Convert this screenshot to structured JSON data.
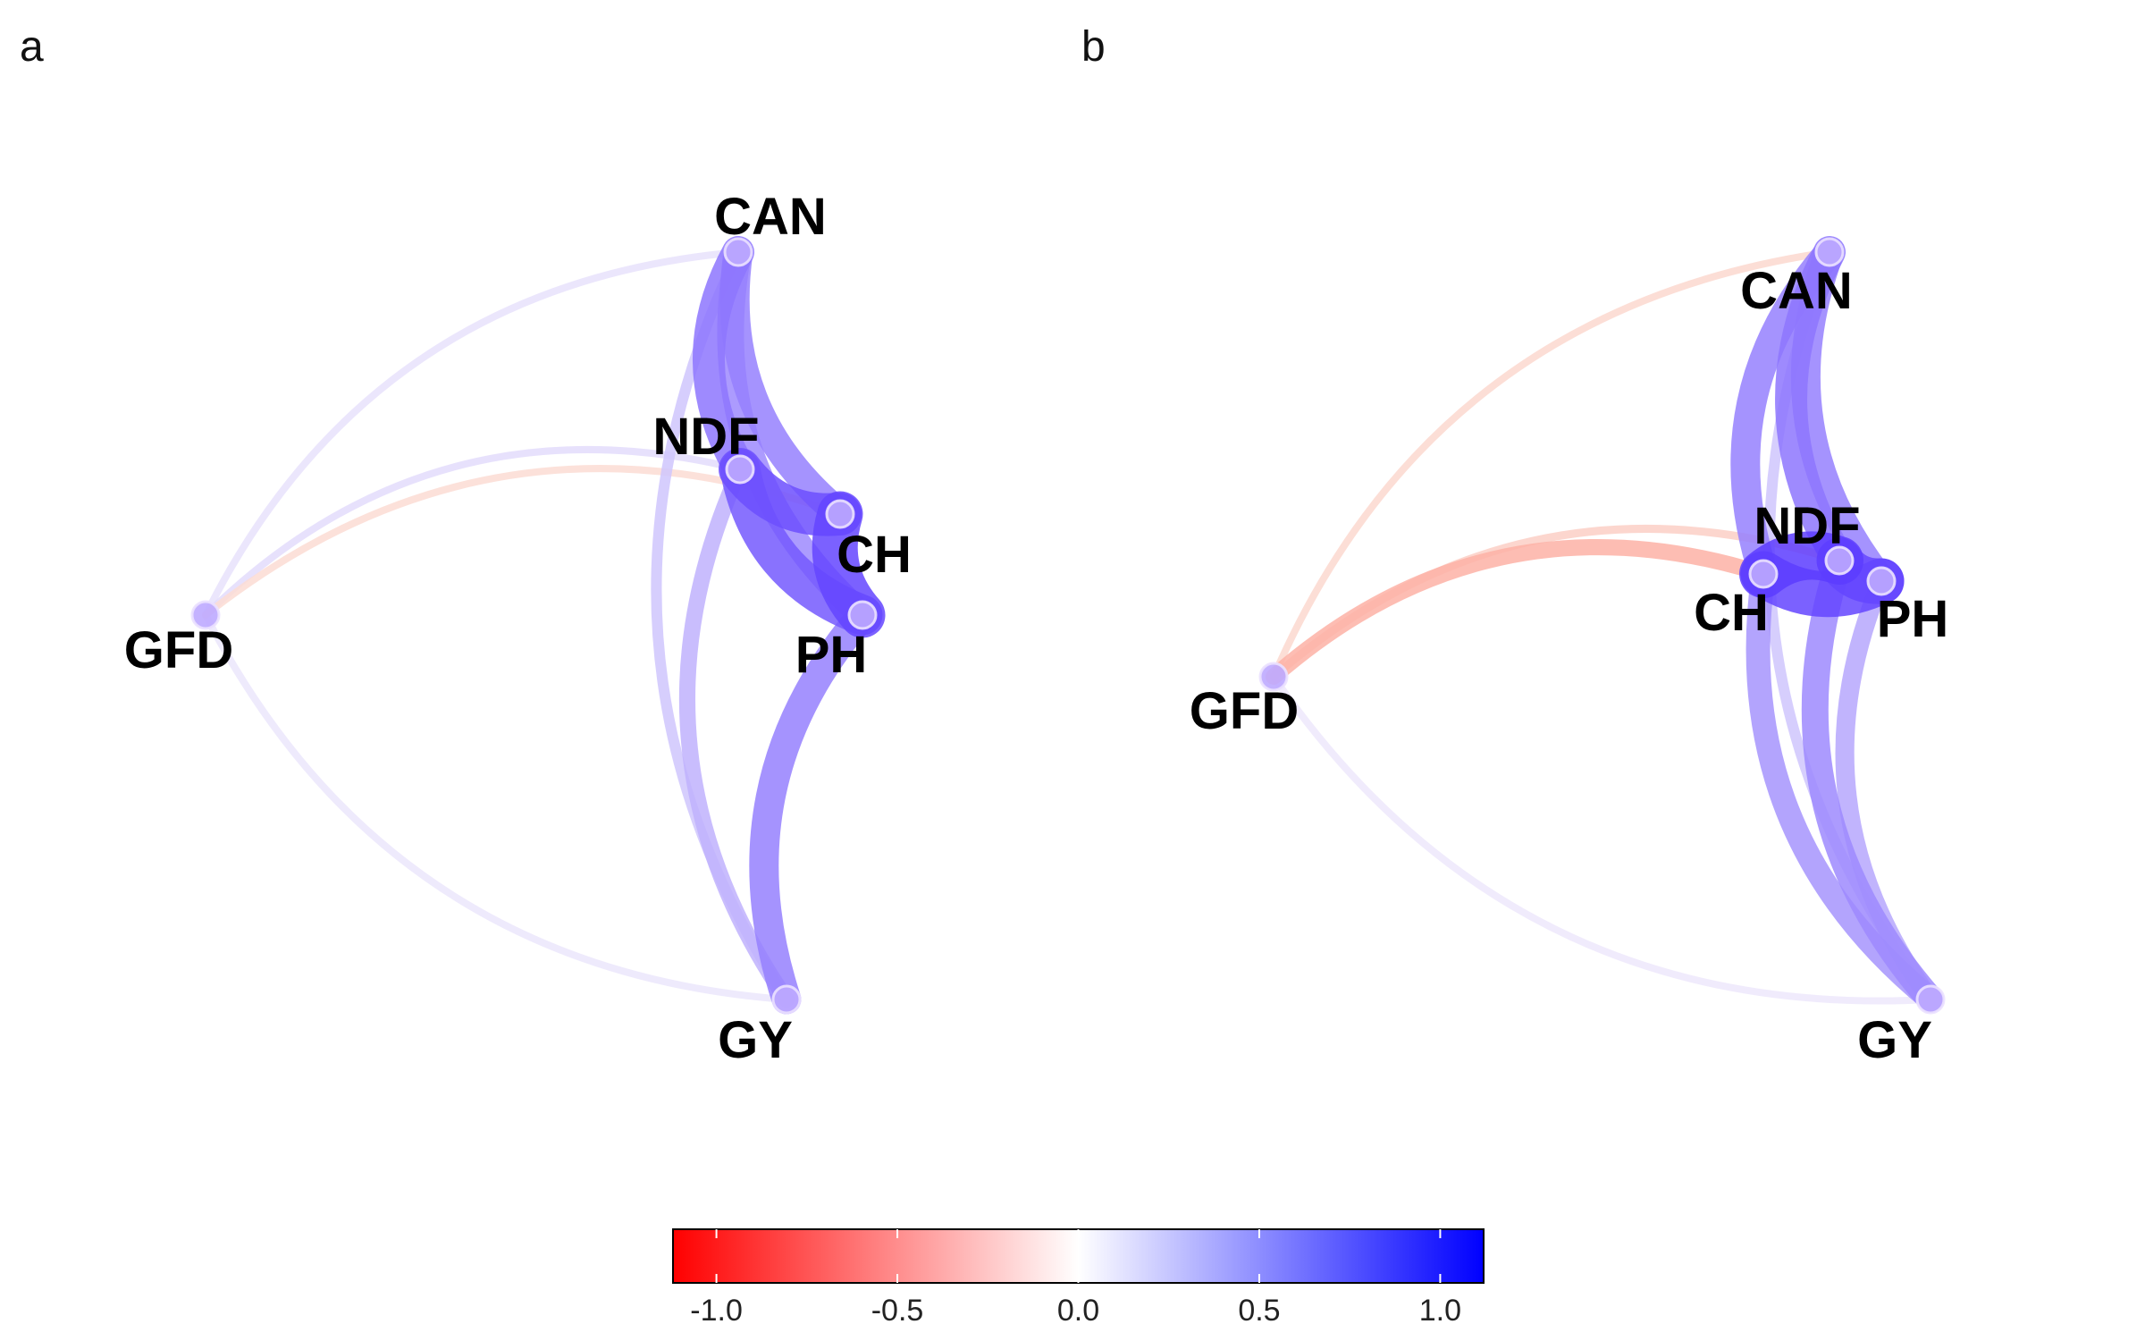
{
  "figure": {
    "panels": [
      {
        "label": "a",
        "nodes": [
          {
            "id": "CAN",
            "label": "CAN"
          },
          {
            "id": "NDF",
            "label": "NDF"
          },
          {
            "id": "CH",
            "label": "CH"
          },
          {
            "id": "PH",
            "label": "PH"
          },
          {
            "id": "GFD",
            "label": "GFD"
          },
          {
            "id": "GY",
            "label": "GY"
          }
        ],
        "edges": [
          {
            "from": "CAN",
            "to": "NDF",
            "r": 0.6
          },
          {
            "from": "CAN",
            "to": "CH",
            "r": 0.55
          },
          {
            "from": "CAN",
            "to": "PH",
            "r": 0.5
          },
          {
            "from": "CAN",
            "to": "GFD",
            "r": 0.05
          },
          {
            "from": "CAN",
            "to": "GY",
            "r": 0.2
          },
          {
            "from": "NDF",
            "to": "CH",
            "r": 0.8
          },
          {
            "from": "NDF",
            "to": "PH",
            "r": 0.75
          },
          {
            "from": "NDF",
            "to": "GFD",
            "r": 0.08
          },
          {
            "from": "NDF",
            "to": "GY",
            "r": 0.3
          },
          {
            "from": "CH",
            "to": "PH",
            "r": 0.85
          },
          {
            "from": "CH",
            "to": "GFD",
            "r": -0.08
          },
          {
            "from": "PH",
            "to": "GY",
            "r": 0.55
          },
          {
            "from": "GFD",
            "to": "GY",
            "r": 0.03
          }
        ]
      },
      {
        "label": "b",
        "nodes": [
          {
            "id": "CAN",
            "label": "CAN"
          },
          {
            "id": "NDF",
            "label": "NDF"
          },
          {
            "id": "CH",
            "label": "CH"
          },
          {
            "id": "PH",
            "label": "PH"
          },
          {
            "id": "GFD",
            "label": "GFD"
          },
          {
            "id": "GY",
            "label": "GY"
          }
        ],
        "edges": [
          {
            "from": "CAN",
            "to": "NDF",
            "r": 0.6
          },
          {
            "from": "CAN",
            "to": "CH",
            "r": 0.55
          },
          {
            "from": "CAN",
            "to": "PH",
            "r": 0.55
          },
          {
            "from": "CAN",
            "to": "GFD",
            "r": -0.1
          },
          {
            "from": "CAN",
            "to": "GY",
            "r": 0.2
          },
          {
            "from": "NDF",
            "to": "CH",
            "r": 0.9
          },
          {
            "from": "NDF",
            "to": "PH",
            "r": 0.85
          },
          {
            "from": "NDF",
            "to": "GFD",
            "r": -0.15
          },
          {
            "from": "NDF",
            "to": "GY",
            "r": 0.5
          },
          {
            "from": "CH",
            "to": "PH",
            "r": 0.85
          },
          {
            "from": "CH",
            "to": "GFD",
            "r": -0.3
          },
          {
            "from": "CH",
            "to": "GY",
            "r": 0.45
          },
          {
            "from": "PH",
            "to": "GY",
            "r": 0.35
          },
          {
            "from": "GFD",
            "to": "GY",
            "r": 0.02
          }
        ]
      }
    ],
    "colorbar": {
      "min": -1.12,
      "max": 1.12,
      "ticks": [
        -1.0,
        -0.5,
        0.0,
        0.5,
        1.0
      ],
      "tick_labels": [
        "-1.0",
        "-0.5",
        "0.0",
        "0.5",
        "1.0"
      ],
      "colors": {
        "negative": "#ff0000",
        "neutral": "#ffffff",
        "positive": "#0000ff"
      }
    }
  }
}
